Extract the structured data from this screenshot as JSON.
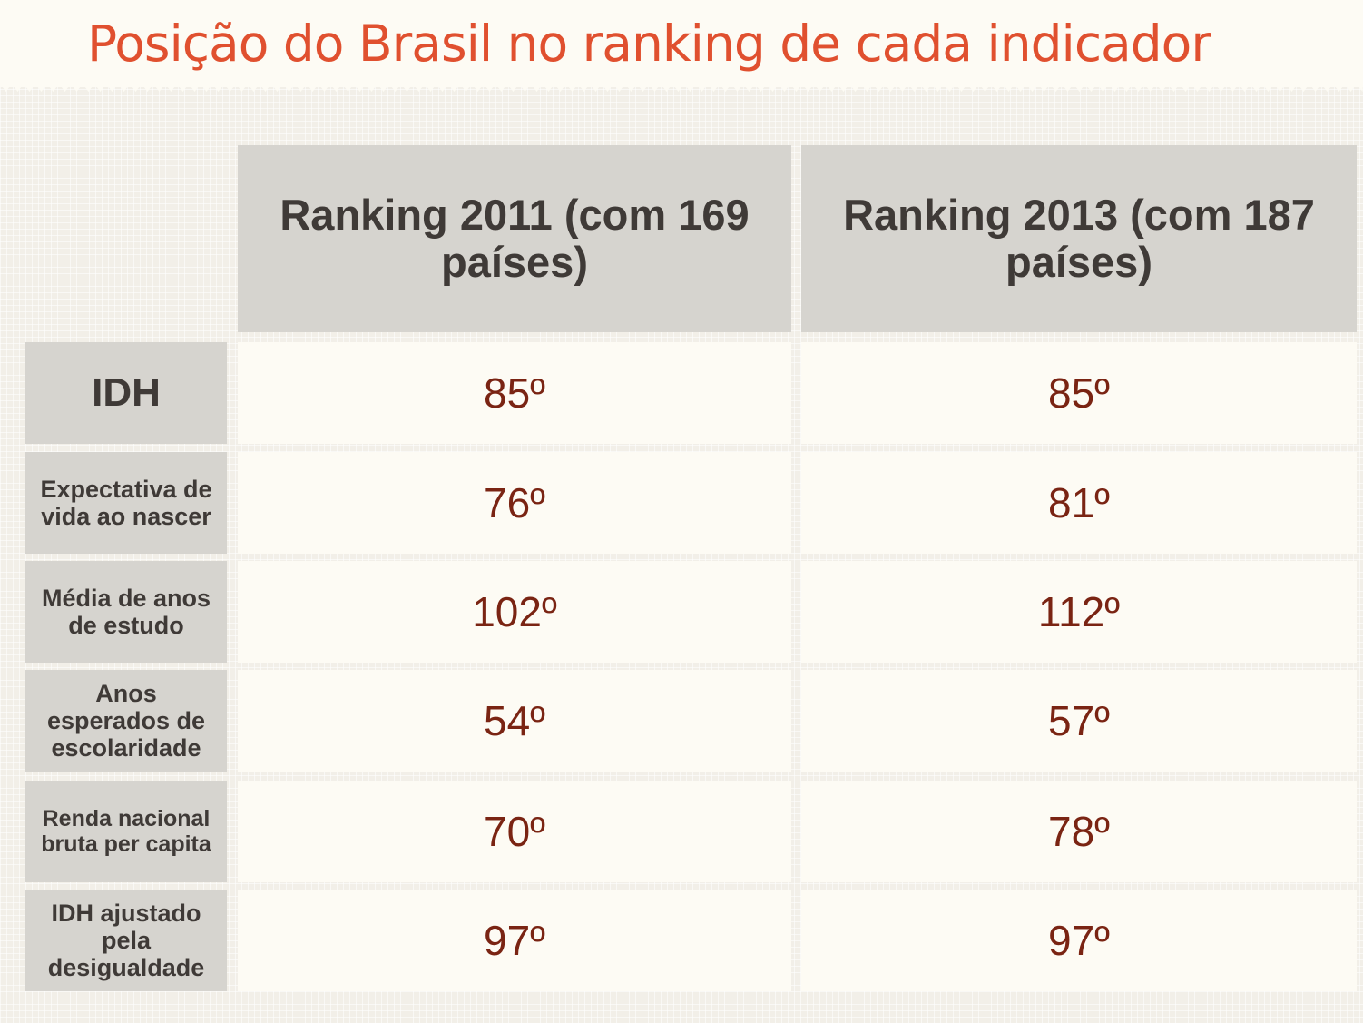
{
  "title": "Posição do Brasil no ranking de cada indicador",
  "chart_data": {
    "type": "table",
    "columns": [
      "Ranking 2011 (com 169 países)",
      "Ranking 2013 (com 187 países)"
    ],
    "rows": [
      {
        "label": "IDH",
        "values": [
          "85º",
          "85º"
        ]
      },
      {
        "label": "Expectativa de vida ao nascer",
        "values": [
          "76º",
          "81º"
        ]
      },
      {
        "label": "Média de anos de estudo",
        "values": [
          "102º",
          "112º"
        ]
      },
      {
        "label": "Anos esperados de escolaridade",
        "values": [
          "54º",
          "57º"
        ]
      },
      {
        "label": "Renda nacional bruta per capita",
        "values": [
          "70º",
          "78º"
        ]
      },
      {
        "label": "IDH ajustado pela desigualdade",
        "values": [
          "97º",
          "97º"
        ]
      }
    ]
  },
  "colors": {
    "title": "#e0502f",
    "header_bg": "#d6d4cf",
    "cell_bg": "#fdfbf4",
    "value_text": "#7a2413",
    "label_text": "#3f3a37"
  }
}
